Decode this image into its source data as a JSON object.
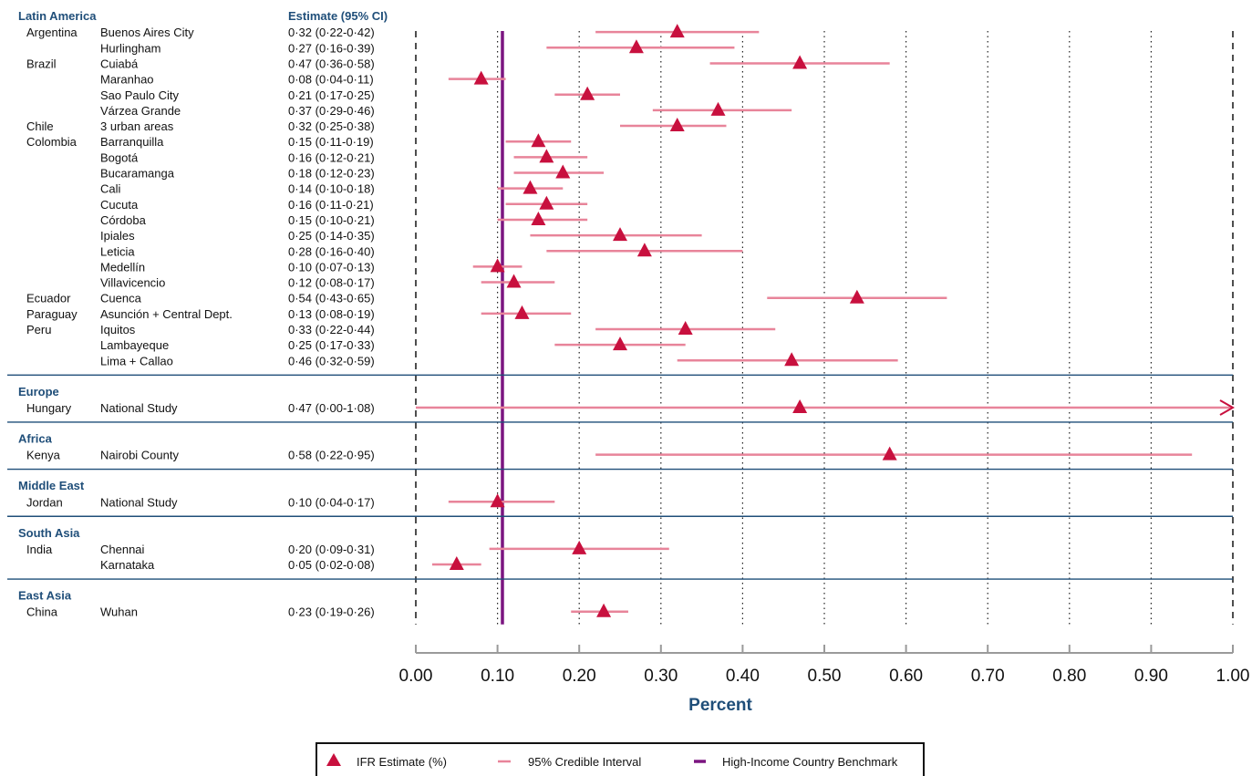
{
  "colors": {
    "region": "#1f4e79",
    "point": "#c8103e",
    "ci": "#e8849a",
    "benchmark": "#7b1580",
    "separator": "#1f4e79"
  },
  "header": {
    "estimate_label": "Estimate (95% CI)"
  },
  "chart_data": {
    "type": "forest",
    "xlabel": "Percent",
    "xlim": [
      0,
      1
    ],
    "ticks": [
      "0.00",
      "0.10",
      "0.20",
      "0.30",
      "0.40",
      "0.50",
      "0.60",
      "0.70",
      "0.80",
      "0.90",
      "1.00"
    ],
    "benchmark": 0.106,
    "legend": [
      {
        "kind": "point",
        "label": "IFR Estimate (%)"
      },
      {
        "kind": "ci",
        "label": "95% Credible Interval"
      },
      {
        "kind": "benchmark",
        "label": "High-Income Country Benchmark"
      }
    ],
    "regions": [
      {
        "name": "Latin America",
        "rows": [
          {
            "country": "Argentina",
            "site": "Buenos Aires City",
            "est": 0.32,
            "lo": 0.22,
            "hi": 0.42,
            "text": "0·32 (0·22-0·42)"
          },
          {
            "country": "",
            "site": "Hurlingham",
            "est": 0.27,
            "lo": 0.16,
            "hi": 0.39,
            "text": "0·27 (0·16-0·39)"
          },
          {
            "country": "Brazil",
            "site": "Cuiabá",
            "est": 0.47,
            "lo": 0.36,
            "hi": 0.58,
            "text": "0·47 (0·36-0·58)"
          },
          {
            "country": "",
            "site": "Maranhao",
            "est": 0.08,
            "lo": 0.04,
            "hi": 0.11,
            "text": "0·08 (0·04-0·11)"
          },
          {
            "country": "",
            "site": "Sao Paulo City",
            "est": 0.21,
            "lo": 0.17,
            "hi": 0.25,
            "text": "0·21 (0·17-0·25)"
          },
          {
            "country": "",
            "site": "Várzea Grande",
            "est": 0.37,
            "lo": 0.29,
            "hi": 0.46,
            "text": "0·37 (0·29-0·46)"
          },
          {
            "country": "Chile",
            "site": "3 urban areas",
            "est": 0.32,
            "lo": 0.25,
            "hi": 0.38,
            "text": "0·32 (0·25-0·38)"
          },
          {
            "country": "Colombia",
            "site": "Barranquilla",
            "est": 0.15,
            "lo": 0.11,
            "hi": 0.19,
            "text": "0·15 (0·11-0·19)"
          },
          {
            "country": "",
            "site": "Bogotá",
            "est": 0.16,
            "lo": 0.12,
            "hi": 0.21,
            "text": "0·16 (0·12-0·21)"
          },
          {
            "country": "",
            "site": "Bucaramanga",
            "est": 0.18,
            "lo": 0.12,
            "hi": 0.23,
            "text": "0·18 (0·12-0·23)"
          },
          {
            "country": "",
            "site": "Cali",
            "est": 0.14,
            "lo": 0.1,
            "hi": 0.18,
            "text": "0·14 (0·10-0·18)"
          },
          {
            "country": "",
            "site": "Cucuta",
            "est": 0.16,
            "lo": 0.11,
            "hi": 0.21,
            "text": "0·16 (0·11-0·21)"
          },
          {
            "country": "",
            "site": "Córdoba",
            "est": 0.15,
            "lo": 0.1,
            "hi": 0.21,
            "text": "0·15 (0·10-0·21)"
          },
          {
            "country": "",
            "site": "Ipiales",
            "est": 0.25,
            "lo": 0.14,
            "hi": 0.35,
            "text": "0·25 (0·14-0·35)"
          },
          {
            "country": "",
            "site": "Leticia",
            "est": 0.28,
            "lo": 0.16,
            "hi": 0.4,
            "text": "0·28 (0·16-0·40)"
          },
          {
            "country": "",
            "site": "Medellín",
            "est": 0.1,
            "lo": 0.07,
            "hi": 0.13,
            "text": "0·10 (0·07-0·13)"
          },
          {
            "country": "",
            "site": "Villavicencio",
            "est": 0.12,
            "lo": 0.08,
            "hi": 0.17,
            "text": "0·12 (0·08-0·17)"
          },
          {
            "country": "Ecuador",
            "site": "Cuenca",
            "est": 0.54,
            "lo": 0.43,
            "hi": 0.65,
            "text": "0·54 (0·43-0·65)"
          },
          {
            "country": "Paraguay",
            "site": "Asunción + Central Dept.",
            "est": 0.13,
            "lo": 0.08,
            "hi": 0.19,
            "text": "0·13 (0·08-0·19)"
          },
          {
            "country": "Peru",
            "site": "Iquitos",
            "est": 0.33,
            "lo": 0.22,
            "hi": 0.44,
            "text": "0·33 (0·22-0·44)"
          },
          {
            "country": "",
            "site": "Lambayeque",
            "est": 0.25,
            "lo": 0.17,
            "hi": 0.33,
            "text": "0·25 (0·17-0·33)"
          },
          {
            "country": "",
            "site": "Lima + Callao",
            "est": 0.46,
            "lo": 0.32,
            "hi": 0.59,
            "text": "0·46 (0·32-0·59)"
          }
        ]
      },
      {
        "name": "Europe",
        "rows": [
          {
            "country": "Hungary",
            "site": "National Study",
            "est": 0.47,
            "lo": 0.0,
            "hi": 1.08,
            "text": "0·47 (0·00-1·08)",
            "arrow": true
          }
        ]
      },
      {
        "name": "Africa",
        "rows": [
          {
            "country": "Kenya",
            "site": "Nairobi County",
            "est": 0.58,
            "lo": 0.22,
            "hi": 0.95,
            "text": "0·58 (0·22-0·95)"
          }
        ]
      },
      {
        "name": "Middle East",
        "rows": [
          {
            "country": "Jordan",
            "site": "National Study",
            "est": 0.1,
            "lo": 0.04,
            "hi": 0.17,
            "text": "0·10 (0·04-0·17)"
          }
        ]
      },
      {
        "name": "South Asia",
        "rows": [
          {
            "country": "India",
            "site": "Chennai",
            "est": 0.2,
            "lo": 0.09,
            "hi": 0.31,
            "text": "0·20 (0·09-0·31)"
          },
          {
            "country": "",
            "site": "Karnataka",
            "est": 0.05,
            "lo": 0.02,
            "hi": 0.08,
            "text": "0·05 (0·02-0·08)"
          }
        ]
      },
      {
        "name": "East Asia",
        "rows": [
          {
            "country": "China",
            "site": "Wuhan",
            "est": 0.23,
            "lo": 0.19,
            "hi": 0.26,
            "text": "0·23 (0·19-0·26)"
          }
        ]
      }
    ]
  }
}
